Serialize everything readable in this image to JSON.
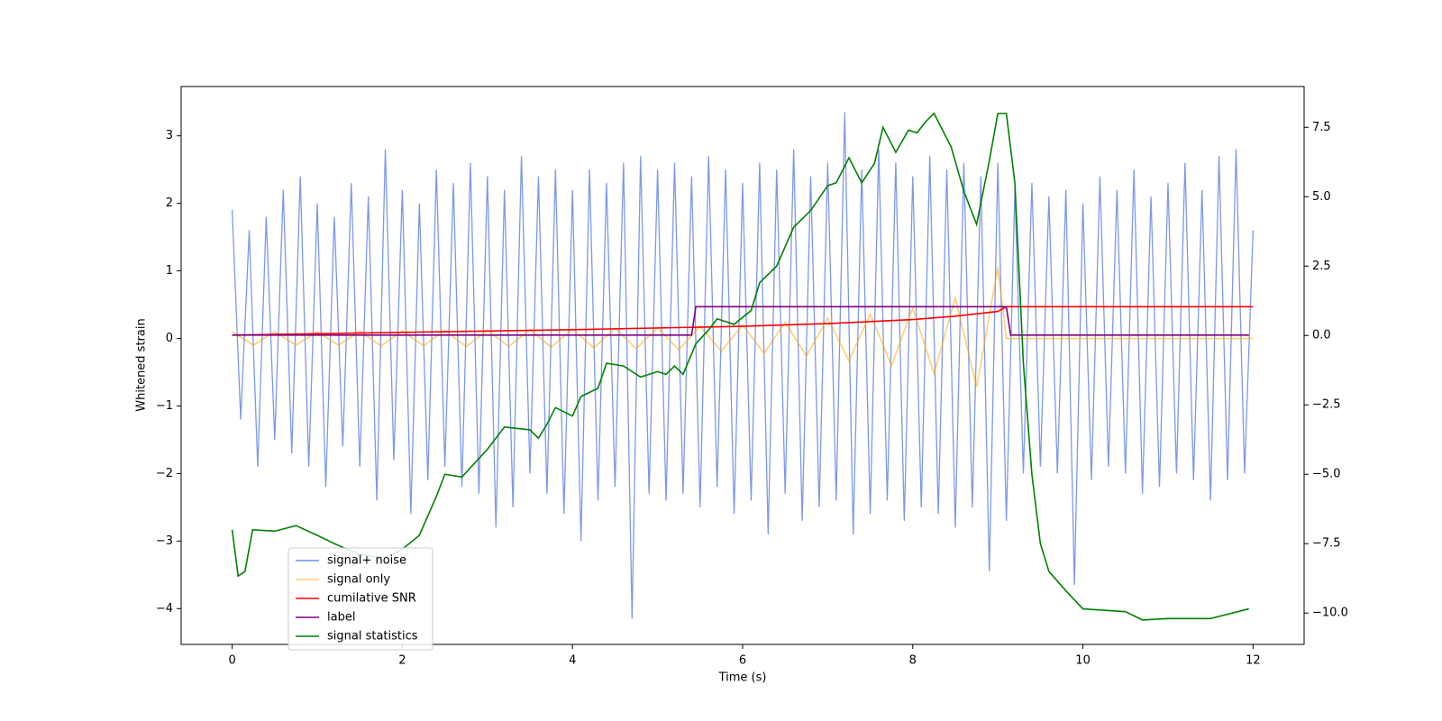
{
  "chart_data": {
    "type": "line",
    "x_label": "Time (s)",
    "y_label": "Whitened strain",
    "xlim": [
      -0.6,
      12.6
    ],
    "ylim": [
      -4.53,
      3.73
    ],
    "y2lim": [
      -11.13,
      8.97
    ],
    "xticks": [
      0,
      2,
      4,
      6,
      8,
      10,
      12
    ],
    "yticks": [
      {
        "value": -4,
        "label": "−4"
      },
      {
        "value": -3,
        "label": "−3"
      },
      {
        "value": -2,
        "label": "−2"
      },
      {
        "value": -1,
        "label": "−1"
      },
      0,
      1,
      2,
      3
    ],
    "y2ticks": [
      {
        "value": -10,
        "label": "−10.0"
      },
      {
        "value": -7.5,
        "label": "−7.5"
      },
      {
        "value": -5,
        "label": "−5.0"
      },
      {
        "value": -2.5,
        "label": "−2.5"
      },
      {
        "value": 0,
        "label": "0.0"
      },
      {
        "value": 2.5,
        "label": "2.5"
      },
      {
        "value": 5,
        "label": "5.0"
      },
      {
        "value": 7.5,
        "label": "7.5"
      }
    ],
    "legend": "lower left",
    "grid": false,
    "series": [
      {
        "name": "signal+ noise",
        "color": "#6f8de8",
        "x": [
          0,
          0.1,
          0.2,
          0.3,
          0.4,
          0.5,
          0.6,
          0.7,
          0.8,
          0.9,
          1,
          1.1,
          1.2,
          1.3,
          1.4,
          1.5,
          1.6,
          1.7,
          1.8,
          1.9,
          2,
          2.1,
          2.2,
          2.3,
          2.4,
          2.5,
          2.6,
          2.7,
          2.8,
          2.9,
          3,
          3.1,
          3.2,
          3.3,
          3.4,
          3.5,
          3.6,
          3.7,
          3.8,
          3.9,
          4,
          4.1,
          4.2,
          4.3,
          4.4,
          4.5,
          4.6,
          4.7,
          4.8,
          4.9,
          5,
          5.1,
          5.2,
          5.3,
          5.4,
          5.5,
          5.6,
          5.7,
          5.8,
          5.9,
          6,
          6.1,
          6.2,
          6.3,
          6.4,
          6.5,
          6.6,
          6.7,
          6.8,
          6.9,
          7,
          7.1,
          7.2,
          7.3,
          7.4,
          7.5,
          7.6,
          7.7,
          7.8,
          7.9,
          8,
          8.1,
          8.2,
          8.3,
          8.4,
          8.5,
          8.6,
          8.7,
          8.8,
          8.9,
          9,
          9.1,
          9.2,
          9.3,
          9.4,
          9.5,
          9.6,
          9.7,
          9.8,
          9.9,
          10,
          10.1,
          10.2,
          10.3,
          10.4,
          10.5,
          10.6,
          10.7,
          10.8,
          10.9,
          11,
          11.1,
          11.2,
          11.3,
          11.4,
          11.5,
          11.6,
          11.7,
          11.8,
          11.9,
          12
        ],
        "values": [
          1.9,
          -1.2,
          1.6,
          -1.9,
          1.8,
          -1.5,
          2.2,
          -1.7,
          2.4,
          -1.9,
          2.0,
          -2.2,
          1.8,
          -1.6,
          2.3,
          -1.9,
          2.1,
          -2.4,
          2.8,
          -1.8,
          2.2,
          -2.6,
          2.0,
          -2.1,
          2.5,
          -1.9,
          2.3,
          -2.2,
          2.6,
          -2.3,
          2.4,
          -2.8,
          2.2,
          -2.5,
          2.7,
          -2.0,
          2.4,
          -2.3,
          2.5,
          -2.6,
          2.2,
          -3.0,
          2.5,
          -2.4,
          2.3,
          -2.2,
          2.6,
          -4.15,
          2.7,
          -2.3,
          2.5,
          -2.4,
          2.6,
          -2.3,
          2.4,
          -2.5,
          2.7,
          -2.2,
          2.5,
          -2.6,
          2.3,
          -2.4,
          2.6,
          -2.9,
          2.5,
          -2.3,
          2.8,
          -2.7,
          2.4,
          -2.5,
          2.6,
          -2.4,
          3.35,
          -2.9,
          2.5,
          -2.6,
          2.8,
          -2.4,
          2.6,
          -2.7,
          2.4,
          -2.5,
          2.7,
          -2.6,
          2.5,
          -2.8,
          2.6,
          -2.5,
          2.4,
          -3.45,
          2.6,
          -2.7,
          2.2,
          -2.0,
          2.3,
          -1.9,
          2.1,
          -2.0,
          2.2,
          -3.65,
          2.0,
          -2.1,
          2.4,
          -1.9,
          2.2,
          -2.0,
          2.5,
          -2.3,
          2.1,
          -2.2,
          2.3,
          -2.0,
          2.6,
          -2.1,
          2.2,
          -2.4,
          2.7,
          -2.1,
          2.8,
          -2.0,
          1.6
        ]
      },
      {
        "name": "signal only",
        "color": "#ffa500",
        "x": [
          0,
          0.25,
          0.5,
          0.75,
          1,
          1.25,
          1.5,
          1.75,
          2,
          2.25,
          2.5,
          2.75,
          3,
          3.25,
          3.5,
          3.75,
          4,
          4.25,
          4.5,
          4.75,
          5,
          5.25,
          5.5,
          5.75,
          6,
          6.25,
          6.5,
          6.75,
          7,
          7.25,
          7.5,
          7.75,
          8,
          8.25,
          8.5,
          8.75,
          9,
          9.1,
          12
        ],
        "values": [
          0.1,
          -0.1,
          0.1,
          -0.1,
          0.1,
          -0.1,
          0.11,
          -0.11,
          0.11,
          -0.11,
          0.12,
          -0.12,
          0.12,
          -0.12,
          0.13,
          -0.13,
          0.14,
          -0.14,
          0.15,
          -0.15,
          0.16,
          -0.17,
          0.18,
          -0.19,
          0.2,
          -0.22,
          0.24,
          -0.26,
          0.3,
          -0.33,
          0.36,
          -0.4,
          0.45,
          -0.52,
          0.6,
          -0.72,
          1.05,
          0,
          0
        ]
      },
      {
        "name": "cumilative SNR",
        "color": "#ff0000",
        "x": [
          0,
          2,
          4,
          6,
          7,
          8,
          8.5,
          9,
          9.1,
          12
        ],
        "values": [
          0.05,
          0.09,
          0.13,
          0.18,
          0.22,
          0.28,
          0.33,
          0.4,
          0.47,
          0.47
        ]
      },
      {
        "name": "label",
        "color": "#800080",
        "x": [
          0,
          5.4,
          5.45,
          9.1,
          9.15,
          11.95
        ],
        "values": [
          0.05,
          0.05,
          0.47,
          0.47,
          0.05,
          0.05
        ]
      },
      {
        "name": "signal statistics",
        "color": "#008000",
        "axis": "y2",
        "x": [
          0,
          0.07,
          0.15,
          0.24,
          0.5,
          0.75,
          1.0,
          1.2,
          1.5,
          1.8,
          2.0,
          2.2,
          2.4,
          2.5,
          2.7,
          3.0,
          3.2,
          3.5,
          3.6,
          3.7,
          3.8,
          4.0,
          4.1,
          4.3,
          4.4,
          4.6,
          4.8,
          5.0,
          5.1,
          5.2,
          5.3,
          5.45,
          5.6,
          5.7,
          5.9,
          6.1,
          6.2,
          6.4,
          6.6,
          6.8,
          7.0,
          7.1,
          7.25,
          7.4,
          7.55,
          7.65,
          7.8,
          7.95,
          8.05,
          8.15,
          8.25,
          8.45,
          8.6,
          8.75,
          8.9,
          9.0,
          9.1,
          9.2,
          9.3,
          9.4,
          9.5,
          9.6,
          9.8,
          10.0,
          10.5,
          10.7,
          11.0,
          11.5,
          11.95
        ],
        "values": [
          -7.0,
          -8.67,
          -8.5,
          -7.0,
          -7.05,
          -6.85,
          -7.2,
          -7.5,
          -7.9,
          -8.0,
          -7.7,
          -7.2,
          -5.8,
          -5.0,
          -5.1,
          -4.1,
          -3.3,
          -3.4,
          -3.7,
          -3.2,
          -2.6,
          -2.9,
          -2.2,
          -1.9,
          -1.0,
          -1.1,
          -1.5,
          -1.3,
          -1.4,
          -1.1,
          -1.4,
          -0.3,
          0.2,
          0.6,
          0.4,
          0.9,
          1.9,
          2.5,
          3.9,
          4.5,
          5.4,
          5.5,
          6.4,
          5.5,
          6.2,
          7.5,
          6.6,
          7.4,
          7.3,
          7.7,
          8.0,
          6.8,
          5.2,
          4.0,
          6.3,
          8.0,
          8.0,
          5.5,
          -1.0,
          -5.0,
          -7.5,
          -8.5,
          -9.2,
          -9.85,
          -9.95,
          -10.25,
          -10.2,
          -10.2,
          -9.85
        ]
      }
    ]
  }
}
